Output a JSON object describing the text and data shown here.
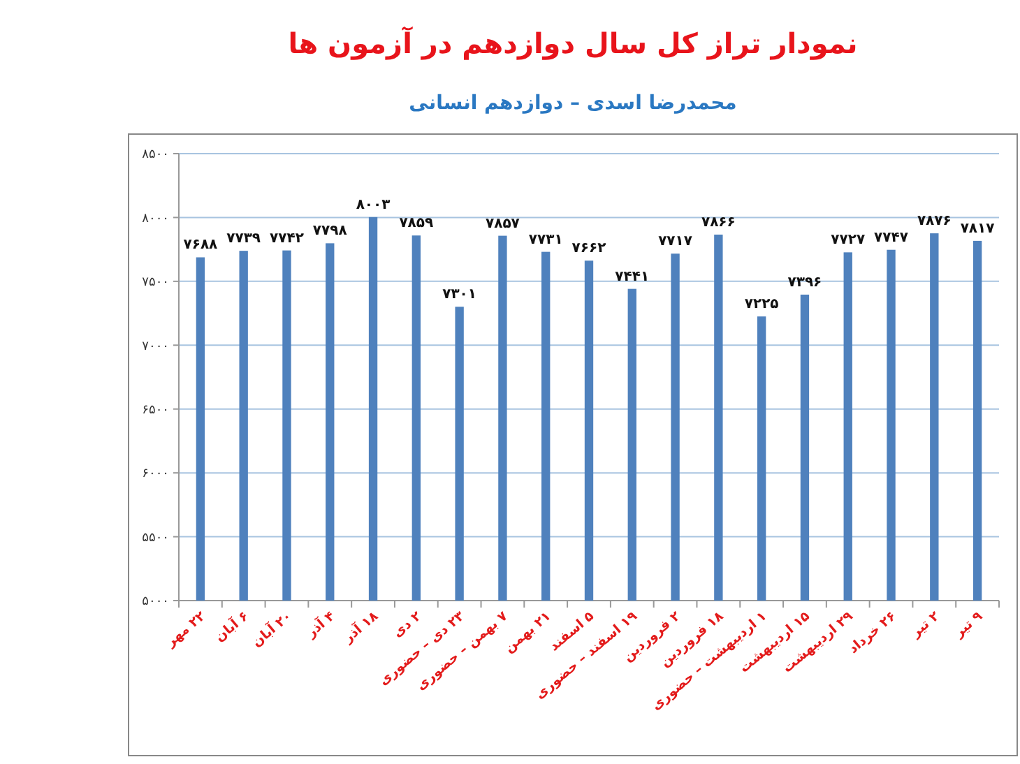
{
  "chart_data": {
    "type": "bar",
    "title": "نمودار تراز کل سال دوازدهم در آزمون ها",
    "subtitle": "محمدرضا اسدی – دوازدهم انسانی",
    "categories": [
      "۲۲ مهر",
      "۶ آبان",
      "۲۰ آبان",
      "۴ آذر",
      "۱۸ آذر",
      "۲ دی",
      "۲۳ دی – حضوری",
      "۷ بهمن – حضوری",
      "۲۱ بهمن",
      "۵ اسفند",
      "۱۹ اسفند – حضوری",
      "۲ فروردین",
      "۱۸ فروردین",
      "۱ اردیبهشت – حضوری",
      "۱۵ اردیبهشت",
      "۲۹ اردیبهشت",
      "۲۶ خرداد",
      "۲ تیر",
      "۹ تیر"
    ],
    "values": [
      7688,
      7739,
      7742,
      7798,
      8003,
      7859,
      7301,
      7857,
      7731,
      7662,
      7441,
      7717,
      7866,
      7225,
      7396,
      7727,
      7747,
      7876,
      7817
    ],
    "value_labels": [
      "۷۶۸۸",
      "۷۷۳۹",
      "۷۷۴۲",
      "۷۷۹۸",
      "۸۰۰۳",
      "۷۸۵۹",
      "۷۳۰۱",
      "۷۸۵۷",
      "۷۷۳۱",
      "۷۶۶۲",
      "۷۴۴۱",
      "۷۷۱۷",
      "۷۸۶۶",
      "۷۲۲۵",
      "۷۳۹۶",
      "۷۷۲۷",
      "۷۷۴۷",
      "۷۸۷۶",
      "۷۸۱۷"
    ],
    "color": "#4f81bd",
    "ylim": [
      5000,
      8500
    ],
    "yticks": [
      {
        "value": 5000,
        "label": "۵۰۰۰"
      },
      {
        "value": 5500,
        "label": "۵۵۰۰"
      },
      {
        "value": 6000,
        "label": "۶۰۰۰"
      },
      {
        "value": 6500,
        "label": "۶۵۰۰"
      },
      {
        "value": 7000,
        "label": "۷۰۰۰"
      },
      {
        "value": 7500,
        "label": "۷۵۰۰"
      },
      {
        "value": 8000,
        "label": "۸۰۰۰"
      },
      {
        "value": 8500,
        "label": "۸۵۰۰"
      }
    ],
    "grid": "y"
  }
}
